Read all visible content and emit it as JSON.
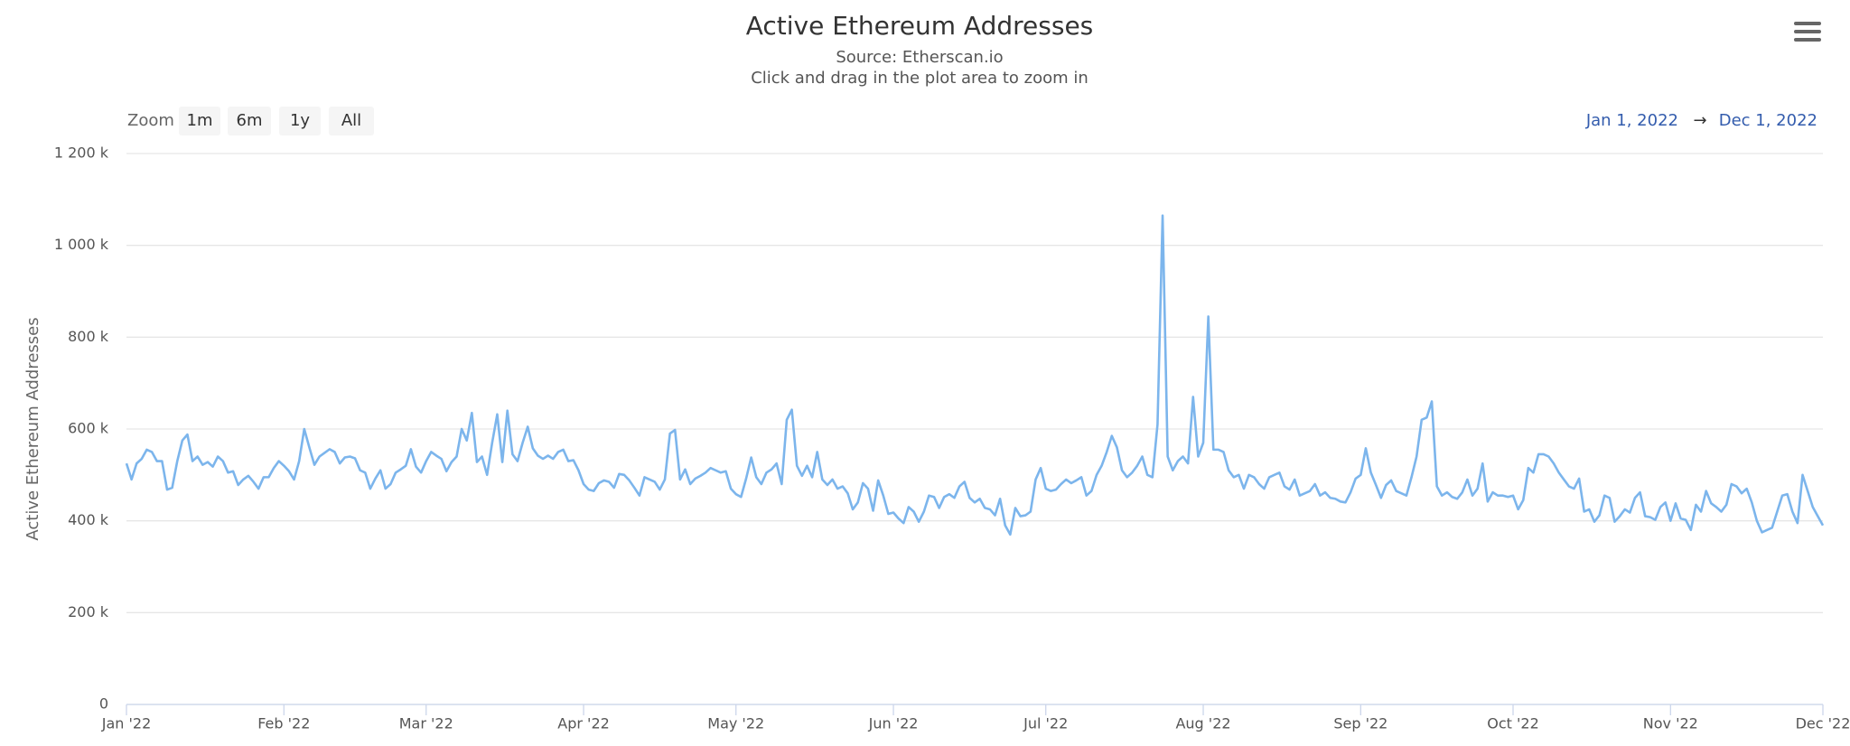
{
  "chart_data": {
    "type": "line",
    "title": "Active Ethereum Addresses",
    "subtitle": "Source: Etherscan.io",
    "caption": "Click and drag in the plot area to zoom in",
    "y_axis_label": "Active Ethereum Addresses",
    "range_selector": {
      "label": "Zoom",
      "buttons": [
        "1m",
        "6m",
        "1y",
        "All"
      ],
      "from": "Jan 1, 2022",
      "arrow": "→",
      "to": "Dec 1, 2022"
    },
    "grid": true,
    "ylim": [
      0,
      1200000
    ],
    "yticks": [
      0,
      {
        "value": 200000,
        "label": "200 k"
      },
      {
        "value": 400000,
        "label": "400 k"
      },
      {
        "value": 600000,
        "label": "600 k"
      },
      {
        "value": 800000,
        "label": "800 k"
      },
      {
        "value": 1000000,
        "label": "1 000 k"
      },
      {
        "value": 1200000,
        "label": "1 200 k"
      }
    ],
    "xlim": [
      "2022-01-01",
      "2022-12-01"
    ],
    "xticks": [
      {
        "value": "2022-01-01",
        "label": "Jan '22"
      },
      {
        "value": "2022-02-01",
        "label": "Feb '22"
      },
      {
        "value": "2022-03-01",
        "label": "Mar '22"
      },
      {
        "value": "2022-04-01",
        "label": "Apr '22"
      },
      {
        "value": "2022-05-01",
        "label": "May '22"
      },
      {
        "value": "2022-06-01",
        "label": "Jun '22"
      },
      {
        "value": "2022-07-01",
        "label": "Jul '22"
      },
      {
        "value": "2022-08-01",
        "label": "Aug '22"
      },
      {
        "value": "2022-09-01",
        "label": "Sep '22"
      },
      {
        "value": "2022-10-01",
        "label": "Oct '22"
      },
      {
        "value": "2022-11-01",
        "label": "Nov '22"
      },
      {
        "value": "2022-12-01",
        "label": "Dec '22"
      }
    ],
    "x": [
      "2022-01-01",
      "2022-01-02",
      "2022-01-03",
      "2022-01-04",
      "2022-01-05",
      "2022-01-06",
      "2022-01-07",
      "2022-01-08",
      "2022-01-09",
      "2022-01-10",
      "2022-01-11",
      "2022-01-12",
      "2022-01-13",
      "2022-01-14",
      "2022-01-15",
      "2022-01-16",
      "2022-01-17",
      "2022-01-18",
      "2022-01-19",
      "2022-01-20",
      "2022-01-21",
      "2022-01-22",
      "2022-01-23",
      "2022-01-24",
      "2022-01-25",
      "2022-01-26",
      "2022-01-27",
      "2022-01-28",
      "2022-01-29",
      "2022-01-30",
      "2022-01-31",
      "2022-02-01",
      "2022-02-02",
      "2022-02-03",
      "2022-02-04",
      "2022-02-05",
      "2022-02-06",
      "2022-02-07",
      "2022-02-08",
      "2022-02-09",
      "2022-02-10",
      "2022-02-11",
      "2022-02-12",
      "2022-02-13",
      "2022-02-14",
      "2022-02-15",
      "2022-02-16",
      "2022-02-17",
      "2022-02-18",
      "2022-02-19",
      "2022-02-20",
      "2022-02-21",
      "2022-02-22",
      "2022-02-23",
      "2022-02-24",
      "2022-02-25",
      "2022-02-26",
      "2022-02-27",
      "2022-02-28",
      "2022-03-01",
      "2022-03-02",
      "2022-03-03",
      "2022-03-04",
      "2022-03-05",
      "2022-03-06",
      "2022-03-07",
      "2022-03-08",
      "2022-03-09",
      "2022-03-10",
      "2022-03-11",
      "2022-03-12",
      "2022-03-13",
      "2022-03-14",
      "2022-03-15",
      "2022-03-16",
      "2022-03-17",
      "2022-03-18",
      "2022-03-19",
      "2022-03-20",
      "2022-03-21",
      "2022-03-22",
      "2022-03-23",
      "2022-03-24",
      "2022-03-25",
      "2022-03-26",
      "2022-03-27",
      "2022-03-28",
      "2022-03-29",
      "2022-03-30",
      "2022-03-31",
      "2022-04-01",
      "2022-04-02",
      "2022-04-03",
      "2022-04-04",
      "2022-04-05",
      "2022-04-06",
      "2022-04-07",
      "2022-04-08",
      "2022-04-09",
      "2022-04-10",
      "2022-04-11",
      "2022-04-12",
      "2022-04-13",
      "2022-04-14",
      "2022-04-15",
      "2022-04-16",
      "2022-04-17",
      "2022-04-18",
      "2022-04-19",
      "2022-04-20",
      "2022-04-21",
      "2022-04-22",
      "2022-04-23",
      "2022-04-24",
      "2022-04-25",
      "2022-04-26",
      "2022-04-27",
      "2022-04-28",
      "2022-04-29",
      "2022-04-30",
      "2022-05-01",
      "2022-05-02",
      "2022-05-03",
      "2022-05-04",
      "2022-05-05",
      "2022-05-06",
      "2022-05-07",
      "2022-05-08",
      "2022-05-09",
      "2022-05-10",
      "2022-05-11",
      "2022-05-12",
      "2022-05-13",
      "2022-05-14",
      "2022-05-15",
      "2022-05-16",
      "2022-05-17",
      "2022-05-18",
      "2022-05-19",
      "2022-05-20",
      "2022-05-21",
      "2022-05-22",
      "2022-05-23",
      "2022-05-24",
      "2022-05-25",
      "2022-05-26",
      "2022-05-27",
      "2022-05-28",
      "2022-05-29",
      "2022-05-30",
      "2022-05-31",
      "2022-06-01",
      "2022-06-02",
      "2022-06-03",
      "2022-06-04",
      "2022-06-05",
      "2022-06-06",
      "2022-06-07",
      "2022-06-08",
      "2022-06-09",
      "2022-06-10",
      "2022-06-11",
      "2022-06-12",
      "2022-06-13",
      "2022-06-14",
      "2022-06-15",
      "2022-06-16",
      "2022-06-17",
      "2022-06-18",
      "2022-06-19",
      "2022-06-20",
      "2022-06-21",
      "2022-06-22",
      "2022-06-23",
      "2022-06-24",
      "2022-06-25",
      "2022-06-26",
      "2022-06-27",
      "2022-06-28",
      "2022-06-29",
      "2022-06-30",
      "2022-07-01",
      "2022-07-02",
      "2022-07-03",
      "2022-07-04",
      "2022-07-05",
      "2022-07-06",
      "2022-07-07",
      "2022-07-08",
      "2022-07-09",
      "2022-07-10",
      "2022-07-11",
      "2022-07-12",
      "2022-07-13",
      "2022-07-14",
      "2022-07-15",
      "2022-07-16",
      "2022-07-17",
      "2022-07-18",
      "2022-07-19",
      "2022-07-20",
      "2022-07-21",
      "2022-07-22",
      "2022-07-23",
      "2022-07-24",
      "2022-07-25",
      "2022-07-26",
      "2022-07-27",
      "2022-07-28",
      "2022-07-29",
      "2022-07-30",
      "2022-07-31",
      "2022-08-01",
      "2022-08-02",
      "2022-08-03",
      "2022-08-04",
      "2022-08-05",
      "2022-08-06",
      "2022-08-07",
      "2022-08-08",
      "2022-08-09",
      "2022-08-10",
      "2022-08-11",
      "2022-08-12",
      "2022-08-13",
      "2022-08-14",
      "2022-08-15",
      "2022-08-16",
      "2022-08-17",
      "2022-08-18",
      "2022-08-19",
      "2022-08-20",
      "2022-08-21",
      "2022-08-22",
      "2022-08-23",
      "2022-08-24",
      "2022-08-25",
      "2022-08-26",
      "2022-08-27",
      "2022-08-28",
      "2022-08-29",
      "2022-08-30",
      "2022-08-31",
      "2022-09-01",
      "2022-09-02",
      "2022-09-03",
      "2022-09-04",
      "2022-09-05",
      "2022-09-06",
      "2022-09-07",
      "2022-09-08",
      "2022-09-09",
      "2022-09-10",
      "2022-09-11",
      "2022-09-12",
      "2022-09-13",
      "2022-09-14",
      "2022-09-15",
      "2022-09-16",
      "2022-09-17",
      "2022-09-18",
      "2022-09-19",
      "2022-09-20",
      "2022-09-21",
      "2022-09-22",
      "2022-09-23",
      "2022-09-24",
      "2022-09-25",
      "2022-09-26",
      "2022-09-27",
      "2022-09-28",
      "2022-09-29",
      "2022-09-30",
      "2022-10-01",
      "2022-10-02",
      "2022-10-03",
      "2022-10-04",
      "2022-10-05",
      "2022-10-06",
      "2022-10-07",
      "2022-10-08",
      "2022-10-09",
      "2022-10-10",
      "2022-10-11",
      "2022-10-12",
      "2022-10-13",
      "2022-10-14",
      "2022-10-15",
      "2022-10-16",
      "2022-10-17",
      "2022-10-18",
      "2022-10-19",
      "2022-10-20",
      "2022-10-21",
      "2022-10-22",
      "2022-10-23",
      "2022-10-24",
      "2022-10-25",
      "2022-10-26",
      "2022-10-27",
      "2022-10-28",
      "2022-10-29",
      "2022-10-30",
      "2022-10-31",
      "2022-11-01",
      "2022-11-02",
      "2022-11-03",
      "2022-11-04",
      "2022-11-05",
      "2022-11-06",
      "2022-11-07",
      "2022-11-08",
      "2022-11-09",
      "2022-11-10",
      "2022-11-11",
      "2022-11-12",
      "2022-11-13",
      "2022-11-14",
      "2022-11-15",
      "2022-11-16",
      "2022-11-17",
      "2022-11-18",
      "2022-11-19",
      "2022-11-20",
      "2022-11-21",
      "2022-11-22",
      "2022-11-23",
      "2022-11-24",
      "2022-11-25",
      "2022-11-26",
      "2022-11-27",
      "2022-11-28",
      "2022-11-29",
      "2022-11-30",
      "2022-12-01"
    ],
    "series": [
      {
        "name": "Active Ethereum Addresses",
        "color": "#7cb5ec",
        "values": [
          525000,
          490000,
          525000,
          535000,
          555000,
          550000,
          530000,
          530000,
          468000,
          472000,
          530000,
          575000,
          588000,
          530000,
          540000,
          522000,
          528000,
          518000,
          540000,
          530000,
          505000,
          508000,
          478000,
          490000,
          498000,
          485000,
          470000,
          495000,
          495000,
          515000,
          530000,
          520000,
          508000,
          490000,
          530000,
          600000,
          560000,
          522000,
          540000,
          548000,
          556000,
          550000,
          525000,
          538000,
          540000,
          536000,
          510000,
          505000,
          470000,
          492000,
          510000,
          470000,
          480000,
          505000,
          512000,
          520000,
          556000,
          518000,
          505000,
          530000,
          550000,
          542000,
          535000,
          508000,
          528000,
          540000,
          600000,
          575000,
          635000,
          528000,
          540000,
          500000,
          570000,
          632000,
          528000,
          640000,
          545000,
          530000,
          570000,
          605000,
          558000,
          542000,
          535000,
          542000,
          535000,
          550000,
          555000,
          530000,
          532000,
          510000,
          480000,
          468000,
          465000,
          482000,
          488000,
          485000,
          472000,
          502000,
          500000,
          488000,
          472000,
          455000,
          495000,
          490000,
          485000,
          468000,
          490000,
          590000,
          598000,
          490000,
          512000,
          480000,
          492000,
          498000,
          505000,
          515000,
          510000,
          505000,
          508000,
          470000,
          458000,
          452000,
          492000,
          538000,
          495000,
          480000,
          505000,
          512000,
          525000,
          480000,
          620000,
          642000,
          520000,
          498000,
          520000,
          495000,
          550000,
          490000,
          478000,
          490000,
          470000,
          475000,
          460000,
          425000,
          440000,
          482000,
          470000,
          422000,
          488000,
          455000,
          415000,
          418000,
          405000,
          395000,
          430000,
          420000,
          398000,
          420000,
          455000,
          452000,
          428000,
          452000,
          458000,
          450000,
          475000,
          485000,
          450000,
          440000,
          448000,
          428000,
          425000,
          412000,
          448000,
          390000,
          370000,
          428000,
          410000,
          412000,
          420000,
          490000,
          515000,
          470000,
          465000,
          468000,
          480000,
          490000,
          482000,
          488000,
          495000,
          455000,
          465000,
          500000,
          520000,
          550000,
          585000,
          560000,
          510000,
          495000,
          505000,
          520000,
          540000,
          500000,
          495000,
          610000,
          1065000,
          540000,
          510000,
          530000,
          540000,
          525000,
          670000,
          540000,
          570000,
          845000,
          555000,
          555000,
          550000,
          510000,
          495000,
          500000,
          470000,
          500000,
          495000,
          480000,
          470000,
          495000,
          500000,
          505000,
          475000,
          468000,
          490000,
          455000,
          460000,
          465000,
          480000,
          455000,
          462000,
          450000,
          448000,
          442000,
          440000,
          462000,
          492000,
          500000,
          558000,
          505000,
          478000,
          450000,
          478000,
          488000,
          465000,
          460000,
          455000,
          495000,
          540000,
          620000,
          625000,
          660000,
          475000,
          455000,
          462000,
          452000,
          448000,
          462000,
          490000,
          455000,
          470000,
          525000,
          442000,
          462000,
          455000,
          455000,
          452000,
          455000,
          425000,
          445000,
          515000,
          505000,
          545000,
          545000,
          540000,
          525000,
          505000,
          490000,
          475000,
          470000,
          492000,
          420000,
          425000,
          398000,
          412000,
          455000,
          450000,
          398000,
          410000,
          425000,
          418000,
          450000,
          462000,
          410000,
          408000,
          402000,
          430000,
          440000,
          400000,
          438000,
          405000,
          402000,
          380000,
          435000,
          420000,
          465000,
          438000,
          430000,
          420000,
          435000,
          480000,
          475000,
          460000,
          470000,
          440000,
          400000,
          375000,
          380000,
          385000,
          420000,
          455000,
          458000,
          420000,
          395000,
          500000,
          465000,
          430000,
          410000,
          390000
        ]
      }
    ]
  }
}
